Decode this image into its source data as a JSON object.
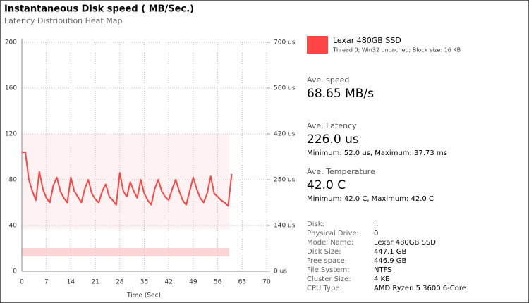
{
  "chart_data": {
    "type": "line",
    "title": "Instantaneous Disk speed ( MB/Sec.)",
    "subtitle": "Latency Distribution Heat Map",
    "x_label": "Time (Sec)",
    "x": [
      0,
      1,
      2,
      3,
      4,
      5,
      6,
      7,
      8,
      9,
      10,
      11,
      12,
      13,
      14,
      15,
      16,
      17,
      18,
      19,
      20,
      21,
      22,
      23,
      24,
      25,
      26,
      27,
      28,
      29,
      30,
      31,
      32,
      33,
      34,
      35,
      36,
      37,
      38,
      39,
      40,
      41,
      42,
      43,
      44,
      45,
      46,
      47,
      48,
      49,
      50,
      51,
      52,
      53,
      54,
      55,
      56,
      57,
      58,
      59,
      60
    ],
    "series": [
      {
        "name": "Lexar 480GB SSD",
        "color": "#ff4444",
        "values": [
          104,
          104,
          80,
          70,
          62,
          87,
          72,
          64,
          60,
          75,
          82,
          70,
          64,
          60,
          82,
          70,
          65,
          60,
          72,
          80,
          68,
          63,
          60,
          70,
          76,
          65,
          62,
          58,
          86,
          70,
          65,
          78,
          70,
          64,
          80,
          68,
          62,
          58,
          72,
          80,
          70,
          65,
          62,
          72,
          80,
          70,
          62,
          58,
          70,
          82,
          72,
          64,
          60,
          68,
          83,
          68,
          65,
          62,
          60,
          57,
          85
        ]
      }
    ],
    "xlim": [
      0,
      70
    ],
    "xticks": [
      0,
      7,
      14,
      21,
      28,
      35,
      42,
      49,
      56,
      63,
      70
    ],
    "ylim": [
      0,
      200
    ],
    "yticks": [
      0,
      40,
      80,
      120,
      160,
      200
    ],
    "y2lim": [
      0,
      700
    ],
    "y2ticks": [
      {
        "value": 0,
        "label": "0 us"
      },
      {
        "value": 140,
        "label": "140 us"
      },
      {
        "value": 280,
        "label": "280 us"
      },
      {
        "value": 420,
        "label": "420 us"
      },
      {
        "value": 560,
        "label": "560 us"
      },
      {
        "value": 700,
        "label": "700 us"
      }
    ],
    "grid": true
  },
  "legend_detail": "Thread 0; Win32 uncached; Block size: 16 KB",
  "stats": [
    {
      "label": "Ave. speed",
      "value": "68.65 MB/s"
    },
    {
      "label": "Ave. Latency",
      "value": "226.0 us",
      "detail": "Minimum: 52.0 us, Maximum: 37.73 ms"
    },
    {
      "label": "Ave. Temperature",
      "value": "42.0 C",
      "detail": "Minimum: 42.0 C, Maximum: 42.0 C"
    }
  ],
  "info": [
    [
      "Disk:",
      "I:"
    ],
    [
      "Physical Drive:",
      "0"
    ],
    [
      "Model Name:",
      "Lexar 480GB SSD"
    ],
    [
      "Disk Size:",
      "447.1 GB"
    ],
    [
      "Free space:",
      "446.9 GB"
    ],
    [
      "File System:",
      "NTFS"
    ],
    [
      "Cluster Size:",
      "4 KB"
    ],
    [
      "CPU Type:",
      "AMD Ryzen 5 3600 6-Core"
    ]
  ]
}
